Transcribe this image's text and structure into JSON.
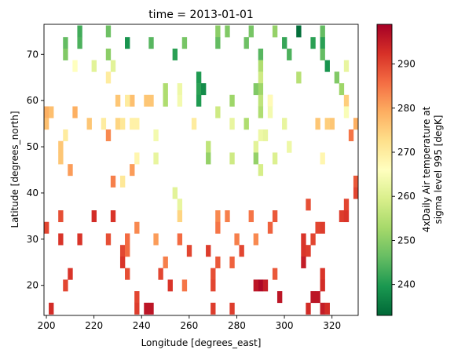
{
  "chart_data": {
    "type": "heatmap",
    "title": "time = 2013-01-01",
    "xlabel": "Longitude [degrees_east]",
    "ylabel": "Latitude [degrees_north]",
    "xlim": [
      199,
      331
    ],
    "ylim": [
      13.5,
      76.5
    ],
    "x_ticks": [
      200,
      220,
      240,
      260,
      280,
      300,
      320
    ],
    "y_ticks": [
      20,
      30,
      40,
      50,
      60,
      70
    ],
    "cell_size": {
      "dlon": 2.0,
      "dlat": 2.5
    },
    "colormap": "RdYlGn_r",
    "colorbar": {
      "label_lines": [
        "4xDaily Air temperature at",
        "sigma level 995 [degK]"
      ],
      "vmin": 233,
      "vmax": 299,
      "ticks": [
        240,
        250,
        260,
        270,
        280,
        290
      ]
    },
    "cells": [
      [
        214,
        75,
        243
      ],
      [
        226,
        75,
        247
      ],
      [
        272,
        75,
        250
      ],
      [
        276,
        75,
        249
      ],
      [
        286,
        75,
        248
      ],
      [
        296,
        75,
        251
      ],
      [
        306,
        75,
        234
      ],
      [
        316,
        75,
        246
      ],
      [
        208,
        72.5,
        246
      ],
      [
        214,
        72.5,
        244
      ],
      [
        234,
        72.5,
        239
      ],
      [
        244,
        72.5,
        245
      ],
      [
        258,
        72.5,
        248
      ],
      [
        272,
        72.5,
        246
      ],
      [
        284,
        72.5,
        247
      ],
      [
        300,
        72.5,
        242
      ],
      [
        312,
        72.5,
        241
      ],
      [
        316,
        72.5,
        241
      ],
      [
        208,
        70,
        249
      ],
      [
        226,
        70,
        250
      ],
      [
        254,
        70,
        241
      ],
      [
        290,
        70,
        245
      ],
      [
        302,
        70,
        244
      ],
      [
        316,
        70,
        246
      ],
      [
        212,
        67.5,
        266
      ],
      [
        220,
        67.5,
        261
      ],
      [
        228,
        67.5,
        261
      ],
      [
        290,
        67.5,
        254
      ],
      [
        318,
        67.5,
        239
      ],
      [
        326,
        67.5,
        262
      ],
      [
        226,
        65,
        270
      ],
      [
        264,
        65,
        240
      ],
      [
        290,
        65,
        258
      ],
      [
        306,
        65,
        255
      ],
      [
        322,
        65,
        249
      ],
      [
        264,
        62.5,
        241
      ],
      [
        266,
        62.5,
        238
      ],
      [
        250,
        62.5,
        254
      ],
      [
        256,
        62.5,
        263
      ],
      [
        288,
        62.5,
        249
      ],
      [
        290,
        62.5,
        252
      ],
      [
        324,
        62.5,
        252
      ],
      [
        256,
        60,
        264
      ],
      [
        278,
        60,
        252
      ],
      [
        264,
        60,
        240
      ],
      [
        236,
        60,
        277
      ],
      [
        242,
        60,
        276
      ],
      [
        250,
        60,
        254
      ],
      [
        294,
        60,
        262
      ],
      [
        290,
        60,
        256
      ],
      [
        294,
        60,
        267
      ],
      [
        326,
        60,
        275
      ],
      [
        230,
        60,
        276
      ],
      [
        234,
        60,
        270
      ],
      [
        244,
        60,
        276
      ],
      [
        200,
        57.5,
        279
      ],
      [
        202,
        57.5,
        277
      ],
      [
        212,
        57.5,
        279
      ],
      [
        272,
        57.5,
        258
      ],
      [
        290,
        57.5,
        254
      ],
      [
        294,
        57.5,
        264
      ],
      [
        326,
        57.5,
        265
      ],
      [
        200,
        55,
        277
      ],
      [
        218,
        55,
        276
      ],
      [
        230,
        55,
        274
      ],
      [
        224,
        55,
        270
      ],
      [
        236,
        55,
        269
      ],
      [
        232,
        55,
        271
      ],
      [
        238,
        55,
        269
      ],
      [
        262,
        55,
        270
      ],
      [
        278,
        55,
        262
      ],
      [
        284,
        55,
        254
      ],
      [
        300,
        55,
        262
      ],
      [
        314,
        55,
        276
      ],
      [
        320,
        55,
        276
      ],
      [
        330,
        55,
        279
      ],
      [
        318,
        55,
        275
      ],
      [
        208,
        52.5,
        270
      ],
      [
        226,
        52.5,
        283
      ],
      [
        246,
        52.5,
        264
      ],
      [
        290,
        52.5,
        263
      ],
      [
        292,
        52.5,
        262
      ],
      [
        328,
        52.5,
        285
      ],
      [
        206,
        50,
        276
      ],
      [
        268,
        50,
        256
      ],
      [
        288,
        50,
        261
      ],
      [
        302,
        50,
        263
      ],
      [
        206,
        47.5,
        276
      ],
      [
        238,
        47.5,
        268
      ],
      [
        246,
        47.5,
        262
      ],
      [
        268,
        47.5,
        251
      ],
      [
        278,
        47.5,
        258
      ],
      [
        288,
        47.5,
        251
      ],
      [
        296,
        47.5,
        260
      ],
      [
        316,
        47.5,
        268
      ],
      [
        210,
        45,
        281
      ],
      [
        236,
        45,
        281
      ],
      [
        290,
        45,
        259
      ],
      [
        228,
        42.5,
        284
      ],
      [
        232,
        42.5,
        271
      ],
      [
        330,
        42.5,
        288
      ],
      [
        254,
        40,
        261
      ],
      [
        330,
        40,
        290
      ],
      [
        256,
        37.5,
        262
      ],
      [
        310,
        37.5,
        289
      ],
      [
        326,
        37.5,
        290
      ],
      [
        206,
        35,
        289
      ],
      [
        220,
        35,
        293
      ],
      [
        228,
        35,
        292
      ],
      [
        256,
        35,
        274
      ],
      [
        272,
        35,
        283
      ],
      [
        276,
        35,
        284
      ],
      [
        286,
        35,
        285
      ],
      [
        296,
        35,
        288
      ],
      [
        324,
        35,
        291
      ],
      [
        326,
        35,
        292
      ],
      [
        200,
        32.5,
        290
      ],
      [
        238,
        32.5,
        283
      ],
      [
        272,
        32.5,
        285
      ],
      [
        294,
        32.5,
        287
      ],
      [
        314,
        32.5,
        290
      ],
      [
        316,
        32.5,
        291
      ],
      [
        206,
        30,
        292
      ],
      [
        214,
        30,
        292
      ],
      [
        226,
        30,
        289
      ],
      [
        246,
        30,
        281
      ],
      [
        234,
        30,
        286
      ],
      [
        256,
        30,
        286
      ],
      [
        280,
        30,
        284
      ],
      [
        288,
        30,
        283
      ],
      [
        308,
        30,
        292
      ],
      [
        312,
        30,
        290
      ],
      [
        232,
        27.5,
        290
      ],
      [
        234,
        27.5,
        286
      ],
      [
        260,
        27.5,
        290
      ],
      [
        268,
        27.5,
        291
      ],
      [
        282,
        27.5,
        290
      ],
      [
        308,
        27.5,
        292
      ],
      [
        310,
        27.5,
        291
      ],
      [
        232,
        25,
        292
      ],
      [
        250,
        25,
        284
      ],
      [
        272,
        25,
        288
      ],
      [
        278,
        25,
        287
      ],
      [
        308,
        25,
        295
      ],
      [
        234,
        22.5,
        289
      ],
      [
        210,
        22.5,
        292
      ],
      [
        248,
        22.5,
        290
      ],
      [
        270,
        22.5,
        289
      ],
      [
        296,
        22.5,
        288
      ],
      [
        316,
        22.5,
        292
      ],
      [
        208,
        20,
        290
      ],
      [
        252,
        20,
        292
      ],
      [
        258,
        20,
        285
      ],
      [
        270,
        20,
        290
      ],
      [
        290,
        20,
        298
      ],
      [
        288,
        20,
        296
      ],
      [
        292,
        20,
        295
      ],
      [
        316,
        20,
        293
      ],
      [
        238,
        17.5,
        290
      ],
      [
        298,
        17.5,
        296
      ],
      [
        312,
        17.5,
        296
      ],
      [
        314,
        17.5,
        296
      ],
      [
        202,
        15,
        293
      ],
      [
        238,
        15,
        291
      ],
      [
        242,
        15,
        296
      ],
      [
        244,
        15,
        296
      ],
      [
        270,
        15,
        291
      ],
      [
        278,
        15,
        291
      ],
      [
        310,
        15,
        293
      ],
      [
        316,
        15,
        295
      ],
      [
        318,
        15,
        293
      ]
    ]
  }
}
